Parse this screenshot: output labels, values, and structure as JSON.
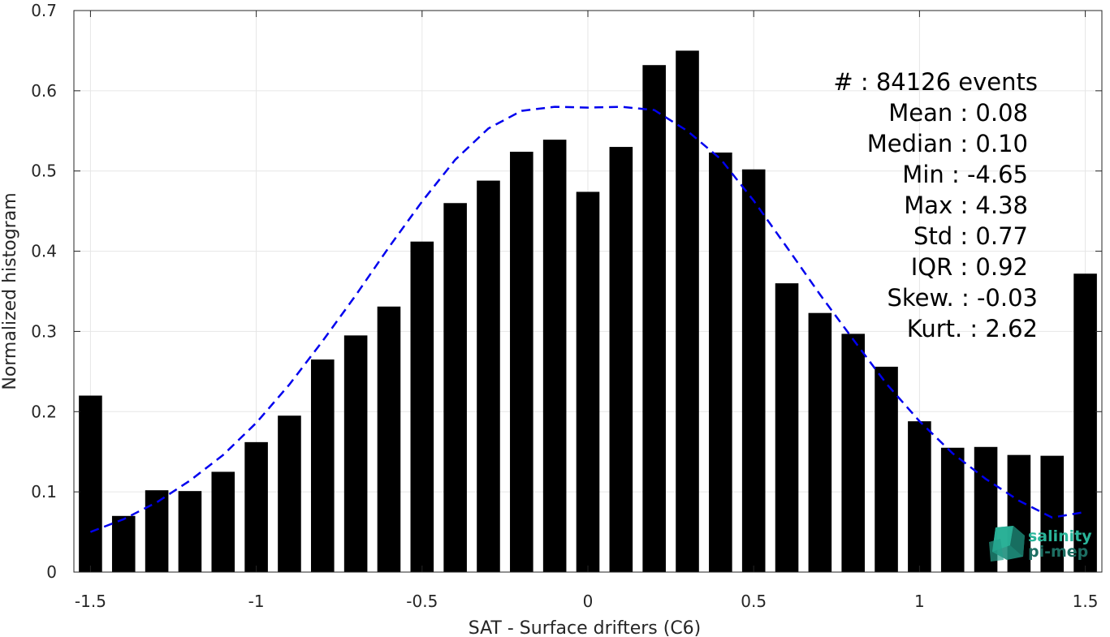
{
  "chart_data": {
    "type": "bar",
    "xlabel": "SAT - Surface drifters (C6)",
    "ylabel": "Normalized histogram",
    "xlim": [
      -1.55,
      1.55
    ],
    "ylim": [
      0,
      0.7
    ],
    "grid": true,
    "x_ticks": [
      -1.5,
      -1,
      -0.5,
      0,
      0.5,
      1,
      1.5
    ],
    "x_tick_labels": [
      "-1.5",
      "-1",
      "-0.5",
      "0",
      "0.5",
      "1",
      "1.5"
    ],
    "y_ticks": [
      0,
      0.1,
      0.2,
      0.3,
      0.4,
      0.5,
      0.6,
      0.7
    ],
    "y_tick_labels": [
      "0",
      "0.1",
      "0.2",
      "0.3",
      "0.4",
      "0.5",
      "0.6",
      "0.7"
    ],
    "bar_width": 0.07,
    "x": [
      -1.5,
      -1.4,
      -1.3,
      -1.2,
      -1.1,
      -1.0,
      -0.9,
      -0.8,
      -0.7,
      -0.6,
      -0.5,
      -0.4,
      -0.3,
      -0.2,
      -0.1,
      0.0,
      0.1,
      0.2,
      0.3,
      0.4,
      0.5,
      0.6,
      0.7,
      0.8,
      0.9,
      1.0,
      1.1,
      1.2,
      1.3,
      1.4,
      1.5
    ],
    "values": [
      0.22,
      0.07,
      0.102,
      0.101,
      0.125,
      0.162,
      0.195,
      0.265,
      0.295,
      0.331,
      0.412,
      0.46,
      0.488,
      0.524,
      0.539,
      0.474,
      0.53,
      0.632,
      0.65,
      0.523,
      0.502,
      0.36,
      0.323,
      0.297,
      0.256,
      0.188,
      0.155,
      0.156,
      0.146,
      0.145,
      0.372
    ],
    "bar_color": "#000000",
    "fit_curve": {
      "style": "dashed",
      "color": "#0000ee",
      "x": [
        -1.5,
        -1.4,
        -1.3,
        -1.2,
        -1.1,
        -1.0,
        -0.9,
        -0.8,
        -0.7,
        -0.6,
        -0.5,
        -0.4,
        -0.3,
        -0.2,
        -0.1,
        0.0,
        0.1,
        0.2,
        0.3,
        0.4,
        0.5,
        0.6,
        0.7,
        0.8,
        0.9,
        1.0,
        1.1,
        1.2,
        1.3,
        1.4,
        1.5
      ],
      "y": [
        0.05,
        0.066,
        0.087,
        0.114,
        0.146,
        0.186,
        0.234,
        0.288,
        0.345,
        0.405,
        0.462,
        0.514,
        0.553,
        0.575,
        0.58,
        0.579,
        0.58,
        0.576,
        0.55,
        0.515,
        0.463,
        0.405,
        0.346,
        0.29,
        0.235,
        0.188,
        0.148,
        0.116,
        0.089,
        0.068,
        0.075
      ]
    }
  },
  "stats": [
    {
      "label": "#  ",
      "value": "84126 events"
    },
    {
      "label": "Mean",
      "value": "0.08"
    },
    {
      "label": "Median",
      "value": "0.10"
    },
    {
      "label": "Min",
      "value": "-4.65"
    },
    {
      "label": "Max",
      "value": "4.38"
    },
    {
      "label": "Std",
      "value": "0.77"
    },
    {
      "label": "IQR",
      "value": "0.92"
    },
    {
      "label": "Skew.",
      "value": "-0.03"
    },
    {
      "label": "Kurt.",
      "value": "2.62"
    }
  ],
  "stats_text": [
    "#  : 84126 events",
    "Mean : 0.08",
    "Median : 0.10",
    "Min : -4.65",
    "Max : 4.38",
    "Std : 0.77",
    "IQR : 0.92",
    "Skew. : -0.03",
    "Kurt. : 2.62"
  ],
  "logo": {
    "line1": "salinity",
    "line2": "pi-mep",
    "color_light": "#2ab59a",
    "color_dark": "#1d6e62"
  },
  "colors": {
    "grid": "#e6e6e6",
    "axis": "#262626",
    "bars": "#000000",
    "fit": "#0000ee"
  }
}
